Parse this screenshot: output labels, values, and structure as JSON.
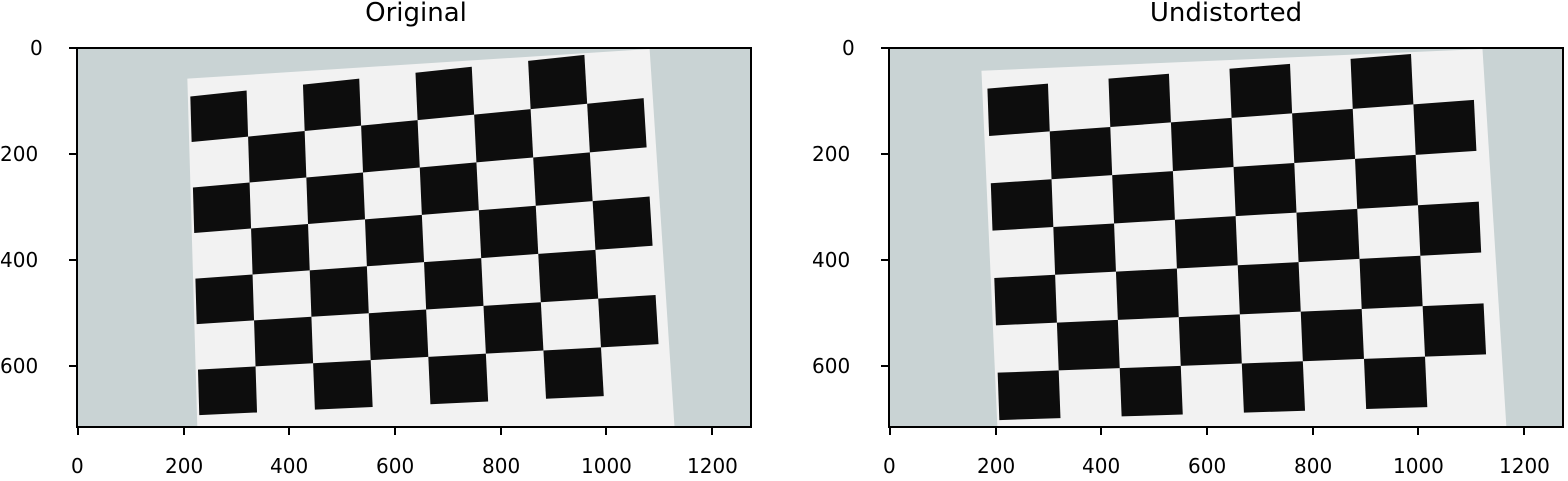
{
  "panels": [
    {
      "title": "Original",
      "x_ticks": [
        "0",
        "200",
        "400",
        "600",
        "800",
        "1000",
        "1200"
      ],
      "y_ticks": [
        "0",
        "200",
        "400",
        "600"
      ]
    },
    {
      "title": "Undistorted",
      "x_ticks": [
        "0",
        "200",
        "400",
        "600",
        "800",
        "1000",
        "1200"
      ],
      "y_ticks": [
        "0",
        "200",
        "400",
        "600"
      ]
    }
  ],
  "image": {
    "content": "checkerboard calibration pattern on wall",
    "wall_color": "#c9d3d4",
    "paper_color": "#f2f2f2",
    "square_color": "#0d0d0d"
  }
}
